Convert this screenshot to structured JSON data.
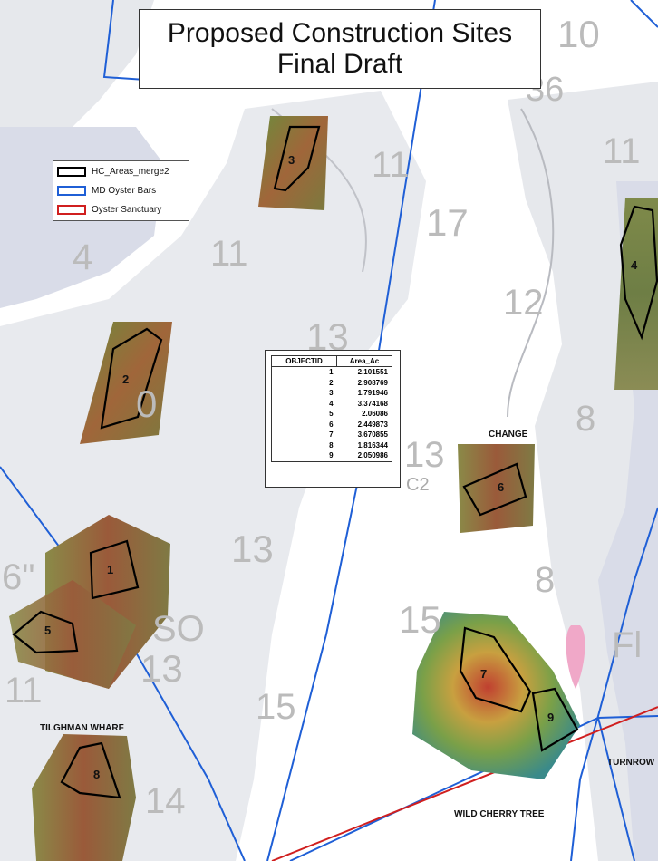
{
  "title": {
    "line1": "Proposed Construction Sites",
    "line2": "Final Draft"
  },
  "legend": [
    {
      "label": "HC_Areas_merge2",
      "color": "#000000"
    },
    {
      "label": "MD Oyster Bars",
      "color": "#1f5fd6"
    },
    {
      "label": "Oyster Sanctuary",
      "color": "#d01f1f"
    }
  ],
  "area_table": {
    "headers": [
      "OBJECTID",
      "Area_Ac"
    ],
    "rows": [
      [
        "1",
        "2.101551"
      ],
      [
        "2",
        "2.908769"
      ],
      [
        "3",
        "1.791946"
      ],
      [
        "4",
        "3.374168"
      ],
      [
        "5",
        "2.06086"
      ],
      [
        "6",
        "2.449873"
      ],
      [
        "7",
        "3.670855"
      ],
      [
        "8",
        "1.816344"
      ],
      [
        "9",
        "2.050986"
      ]
    ]
  },
  "place_labels": [
    "CHANGE",
    "TILGHMAN WHARF",
    "WILD CHERRY TREE",
    "TURNROW"
  ],
  "site_labels": [
    "1",
    "2",
    "3",
    "4",
    "5",
    "6",
    "7",
    "8",
    "9"
  ],
  "depth_soundings": [
    "10",
    "36",
    "11",
    "17",
    "11",
    "4",
    "11",
    "12",
    "13",
    "0",
    "8",
    "13",
    "13",
    "8",
    "15",
    "SO",
    "13",
    "15",
    "11",
    "14",
    "6\"",
    "Fl",
    "C2"
  ],
  "colors": {
    "water": "#ffffff",
    "shoal": "#e6e8ec",
    "land": "#d9dce8",
    "oyster_bar": "#1f5fd6",
    "sanctuary": "#d01f1f",
    "site_outline": "#000000"
  }
}
